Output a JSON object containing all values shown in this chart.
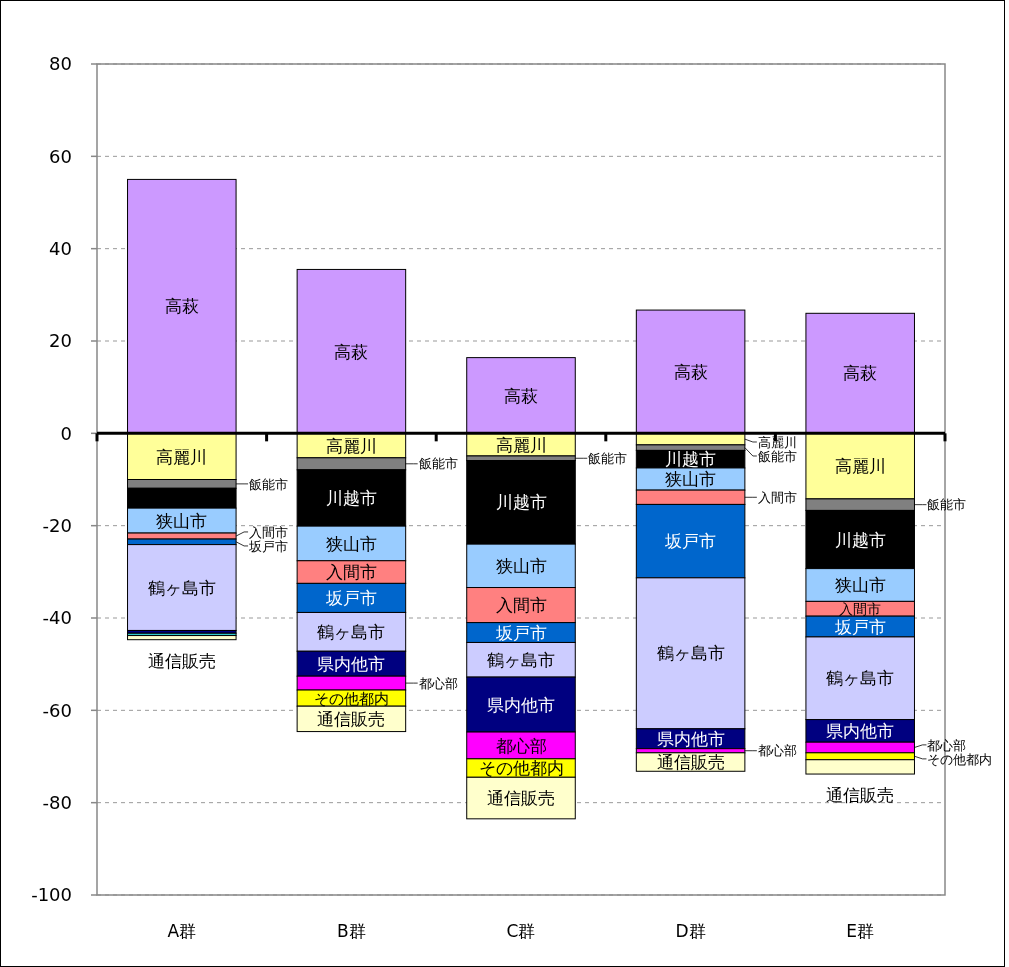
{
  "chart_data": {
    "type": "bar",
    "stacked": true,
    "categories": [
      "A群",
      "B群",
      "C群",
      "D群",
      "E群"
    ],
    "ylim": [
      -100,
      80
    ],
    "yticks": [
      -100,
      -80,
      -60,
      -40,
      -20,
      0,
      20,
      40,
      60,
      80
    ],
    "grid": "y",
    "series": [
      {
        "color": "#cc99ff",
        "values": [
          55,
          35.5,
          16.4,
          26.7,
          26.0
        ],
        "value_labels": [
          "高萩",
          "高萩",
          "高萩",
          "高萩",
          "高萩"
        ]
      },
      {
        "color": "#ffff99",
        "values": [
          -10.0,
          -5.3,
          -4.9,
          -2.5,
          -14.2
        ],
        "value_labels": [
          "高麗川",
          "高麗川",
          "高麗川",
          "高麗川",
          "高麗川"
        ]
      },
      {
        "color": "#808080",
        "values": [
          -1.9,
          -2.6,
          -1.0,
          -1.2,
          -2.5
        ],
        "value_labels": [
          "飯能市",
          "飯能市",
          "飯能市",
          "飯能市",
          "飯能市"
        ]
      },
      {
        "color": "#000000",
        "values": [
          -4.3,
          -12.2,
          -18.1,
          -3.8,
          -12.6
        ],
        "value_labels": [
          null,
          "川越市",
          "川越市",
          "川越市",
          "川越市"
        ]
      },
      {
        "color": "#99ccff",
        "values": [
          -5.4,
          -7.5,
          -9.4,
          -4.8,
          -7.1
        ],
        "value_labels": [
          "狭山市",
          "狭山市",
          "狭山市",
          "狭山市",
          "狭山市"
        ]
      },
      {
        "color": "#ff8080",
        "values": [
          -1.3,
          -4.9,
          -7.6,
          -3.1,
          -3.2
        ],
        "value_labels": [
          "入間市",
          "入間市",
          "入間市",
          "入間市",
          "入間市"
        ]
      },
      {
        "color": "#0066cc",
        "values": [
          -1.2,
          -6.3,
          -4.3,
          -15.9,
          -4.5
        ],
        "value_labels": [
          "坂戸市",
          "坂戸市",
          "坂戸市",
          "坂戸市",
          "坂戸市"
        ]
      },
      {
        "color": "#ccccff",
        "values": [
          -18.6,
          -8.4,
          -7.5,
          -32.7,
          -17.9
        ],
        "value_labels": [
          "鶴ヶ島市",
          "鶴ヶ島市",
          "鶴ヶ島市",
          "鶴ヶ島市",
          "鶴ヶ島市"
        ]
      },
      {
        "color": "#000080",
        "values": [
          -0.6,
          -5.4,
          -11.9,
          -4.3,
          -4.9
        ],
        "value_labels": [
          null,
          "県内他市",
          "県内他市",
          "県内他市",
          "県内他市"
        ]
      },
      {
        "color": "#33cccc",
        "values": [
          -0.5,
          null,
          null,
          null,
          null
        ]
      },
      {
        "color": "#ff00ff",
        "values": [
          null,
          -3.0,
          -5.8,
          -0.9,
          -2.3
        ],
        "value_labels": [
          null,
          "都心部",
          "都心部",
          "都心部",
          "都心部"
        ]
      },
      {
        "color": "#ffff00",
        "values": [
          null,
          -3.5,
          -4.0,
          null,
          -1.5
        ],
        "value_labels": [
          null,
          "その他都内",
          "その他都内",
          null,
          "その他都内"
        ]
      },
      {
        "color": "#ffffcc",
        "values": [
          -0.9,
          -5.5,
          -9.0,
          -4.0,
          -3.1
        ],
        "value_labels": [
          "通信販売",
          "通信販売",
          "通信販売",
          "通信販売",
          "通信販売"
        ]
      }
    ]
  }
}
